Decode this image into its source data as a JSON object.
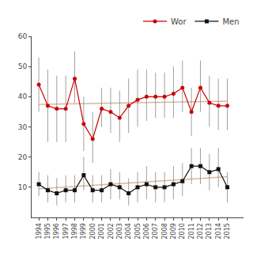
{
  "chart_data": {
    "type": "line",
    "x": [
      1994,
      1995,
      1996,
      1997,
      1998,
      1999,
      2000,
      2001,
      2002,
      2003,
      2004,
      2005,
      2006,
      2007,
      2008,
      2009,
      2010,
      2011,
      2012,
      2013,
      2014,
      2015
    ],
    "series": [
      {
        "name": "Wor",
        "color": "#cc0000",
        "marker": "circle",
        "line_style": "solid",
        "values": [
          44,
          37,
          36,
          36,
          46,
          31,
          26,
          36,
          35,
          33,
          37,
          39,
          40,
          40,
          40,
          41,
          43,
          35,
          43,
          38,
          37,
          37
        ],
        "ci_low": [
          35,
          25,
          25,
          25,
          38,
          22,
          18,
          30,
          28,
          25,
          28,
          30,
          32,
          33,
          33,
          33,
          35,
          27,
          35,
          30,
          29,
          29
        ],
        "ci_high": [
          53,
          49,
          47,
          47,
          55,
          40,
          35,
          43,
          43,
          42,
          46,
          49,
          49,
          48,
          48,
          50,
          52,
          43,
          52,
          47,
          46,
          46
        ]
      },
      {
        "name": "Men",
        "color": "#111111",
        "marker": "square",
        "line_style": "solid",
        "values": [
          11,
          9,
          8,
          9,
          9,
          14,
          9,
          9,
          11,
          10,
          8,
          10,
          11,
          10,
          10,
          11,
          12,
          17,
          17,
          15,
          16,
          10
        ],
        "ci_low": [
          7,
          5,
          4,
          5,
          5,
          9,
          5,
          5,
          6,
          6,
          4,
          5,
          6,
          5,
          5,
          6,
          7,
          11,
          11,
          9,
          10,
          5
        ],
        "ci_high": [
          15,
          14,
          13,
          14,
          14,
          20,
          14,
          14,
          16,
          15,
          13,
          15,
          17,
          15,
          15,
          17,
          18,
          23,
          23,
          21,
          23,
          15
        ]
      },
      {
        "color": "#d4b8a0",
        "line_style": "solid",
        "x": [
          1994,
          2015
        ],
        "values": [
          37.5,
          38.5
        ]
      },
      {
        "color": "#d4b8a0",
        "line_style": "solid",
        "x": [
          1994,
          2015
        ],
        "values": [
          9.5,
          13.5
        ]
      }
    ],
    "xlim": [
      1993.2,
      2016.8
    ],
    "xticks": [
      1994,
      1995,
      1996,
      1997,
      1998,
      1999,
      2000,
      2001,
      2002,
      2003,
      2004,
      2005,
      2006,
      2007,
      2008,
      2009,
      2010,
      2011,
      2012,
      2013,
      2014,
      2015
    ],
    "ylim": [
      0,
      60
    ],
    "yticks": [
      10,
      20,
      30,
      40,
      50,
      60
    ],
    "grid": false,
    "legend": "upper right"
  }
}
